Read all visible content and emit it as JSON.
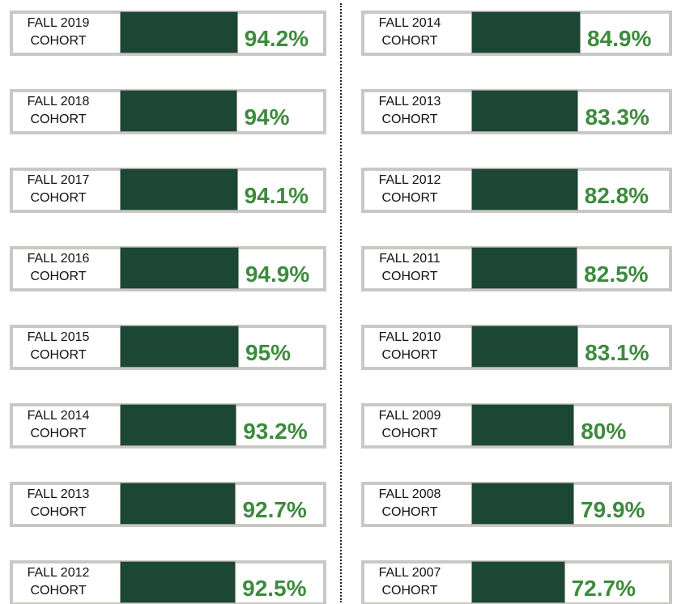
{
  "chart_data": [
    {
      "type": "bar",
      "color": "#1b4734",
      "label_color": "#3d8b3d",
      "categories": [
        "FALL 2019 COHORT",
        "FALL 2018 COHORT",
        "FALL 2017 COHORT",
        "FALL 2016 COHORT",
        "FALL 2015 COHORT",
        "FALL 2014 COHORT",
        "FALL 2013 COHORT",
        "FALL 2012 COHORT"
      ],
      "values": [
        94.2,
        94,
        94.1,
        94.9,
        95,
        93.2,
        92.7,
        92.5
      ],
      "value_labels": [
        "94.2%",
        "94%",
        "94.1%",
        "94.9%",
        "95%",
        "93.2%",
        "92.7%",
        "92.5%"
      ]
    },
    {
      "type": "bar",
      "color": "#1b4734",
      "label_color": "#3d8b3d",
      "categories": [
        "FALL 2014 COHORT",
        "FALL 2013 COHORT",
        "FALL 2012 COHORT",
        "FALL 2011 COHORT",
        "FALL 2010 COHORT",
        "FALL 2009 COHORT",
        "FALL 2008 COHORT",
        "FALL 2007 COHORT"
      ],
      "values": [
        84.9,
        83.3,
        82.8,
        82.5,
        83.1,
        80,
        79.9,
        72.7
      ],
      "value_labels": [
        "84.9%",
        "83.3%",
        "82.8%",
        "82.5%",
        "83.1%",
        "80%",
        "79.9%",
        "72.7%"
      ]
    }
  ]
}
